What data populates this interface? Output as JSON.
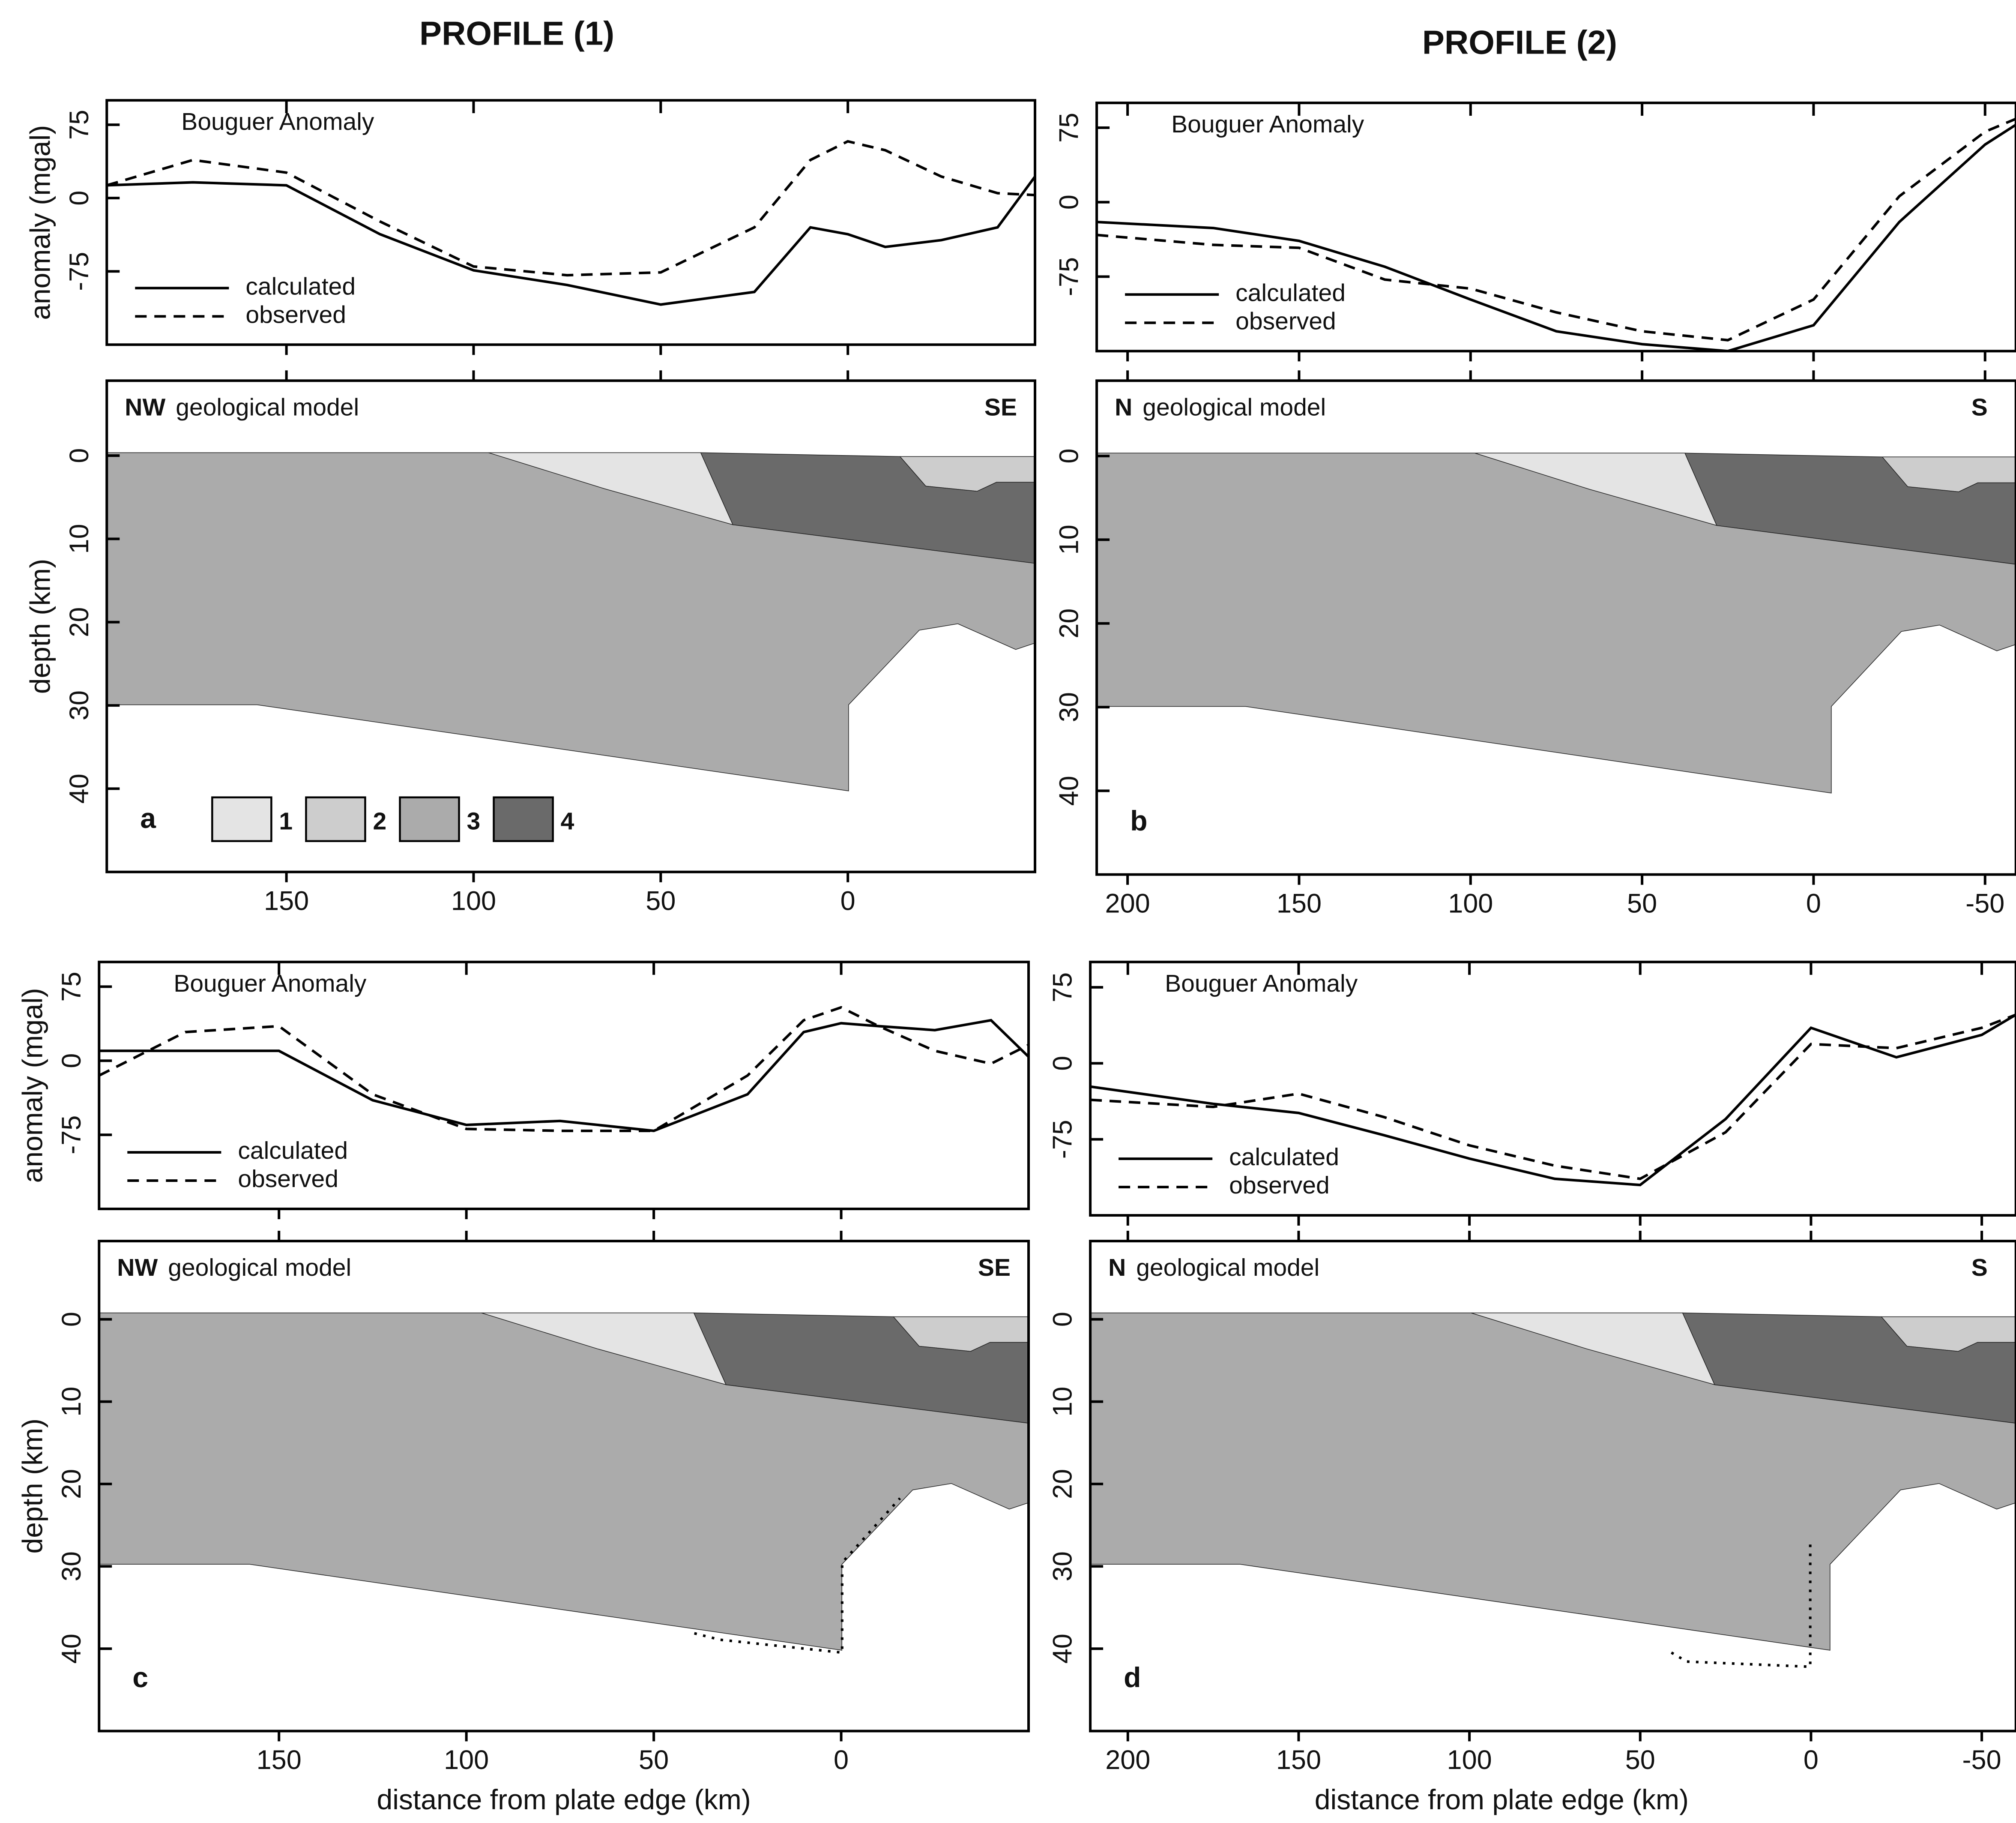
{
  "figure": {
    "titles": [
      "PROFILE (1)",
      "PROFILE (2)"
    ],
    "layers": [
      {
        "name": "1",
        "color": "#e4e4e4"
      },
      {
        "name": "2",
        "color": "#cdcdcd"
      },
      {
        "name": "3",
        "color": "#ababab"
      },
      {
        "name": "4",
        "color": "#6a6a6a"
      }
    ]
  },
  "chart_data": [
    {
      "type": "line",
      "title": "Bouguer Anomaly",
      "y_label": "anomaly (mgal)",
      "x": [
        198,
        175,
        150,
        125,
        100,
        75,
        50,
        25,
        10,
        0,
        -10,
        -25,
        -40,
        -50
      ],
      "series": [
        {
          "name": "calculated",
          "color": "#000000",
          "dash": "solid",
          "values": [
            13,
            16,
            13,
            -37,
            -74,
            -89,
            -109,
            -96,
            -30,
            -37,
            -50,
            -43,
            -30,
            22
          ]
        },
        {
          "name": "observed",
          "color": "#000000",
          "dash": "dashed",
          "values": [
            13,
            39,
            26,
            -24,
            -70,
            -79,
            -76,
            -30,
            39,
            58,
            49,
            22,
            5,
            3
          ]
        }
      ],
      "xlim": [
        198,
        -50
      ],
      "ylim": [
        -150,
        100
      ],
      "yticks": [
        75,
        0,
        -75
      ],
      "legend": "lower left"
    },
    {
      "type": "model",
      "title": "geological model",
      "left_label": "NW",
      "right_label": "SE",
      "panel": "a",
      "y_label": "depth (km)",
      "xlim": [
        198,
        -50
      ],
      "xticks": [
        150,
        100,
        50,
        0
      ],
      "ylim": [
        -9,
        50
      ],
      "yticks": [
        0,
        10,
        20,
        30,
        40
      ],
      "layer_legend": true
    },
    {
      "type": "line",
      "title": "Bouguer Anomaly",
      "x": [
        209,
        175,
        150,
        125,
        100,
        75,
        50,
        25,
        0,
        -25,
        -50,
        -59
      ],
      "series": [
        {
          "name": "calculated",
          "color": "#000000",
          "dash": "solid",
          "values": [
            -20,
            -26,
            -39,
            -65,
            -98,
            -130,
            -143,
            -150,
            -124,
            -20,
            58,
            78
          ]
        },
        {
          "name": "observed",
          "color": "#000000",
          "dash": "dashed",
          "values": [
            -33,
            -43,
            -46,
            -78,
            -87,
            -111,
            -130,
            -139,
            -98,
            6,
            71,
            84
          ]
        }
      ],
      "xlim": [
        209,
        -59
      ],
      "ylim": [
        -150,
        100
      ],
      "yticks": [
        75,
        0,
        -75
      ],
      "legend": "lower left"
    },
    {
      "type": "model",
      "title": "geological model",
      "left_label": "N",
      "right_label": "S",
      "panel": "b",
      "xlim": [
        209,
        -59
      ],
      "xticks": [
        200,
        150,
        100,
        50,
        0,
        -50
      ],
      "ylim": [
        -9,
        50
      ],
      "yticks": [
        0,
        10,
        20,
        30,
        40
      ]
    },
    {
      "type": "line",
      "title": "Bouguer Anomaly",
      "y_label": "anomaly (mgal)",
      "x": [
        198,
        175,
        150,
        125,
        100,
        75,
        50,
        25,
        10,
        0,
        -10,
        -25,
        -40,
        -50
      ],
      "series": [
        {
          "name": "calculated",
          "color": "#000000",
          "dash": "solid",
          "values": [
            10,
            10,
            10,
            -40,
            -65,
            -61,
            -71,
            -34,
            29,
            38,
            35,
            31,
            41,
            4
          ]
        },
        {
          "name": "observed",
          "color": "#000000",
          "dash": "dashed",
          "values": [
            -15,
            29,
            35,
            -34,
            -69,
            -71,
            -71,
            -15,
            41,
            54,
            35,
            10,
            -3,
            16
          ]
        }
      ],
      "xlim": [
        198,
        -50
      ],
      "ylim": [
        -150,
        100
      ],
      "yticks": [
        75,
        0,
        -75
      ],
      "legend": "lower left"
    },
    {
      "type": "model",
      "title": "geological model",
      "left_label": "NW",
      "right_label": "SE",
      "panel": "c",
      "y_label": "depth (km)",
      "x_label": "distance from plate edge (km)",
      "xlim": [
        198,
        -50
      ],
      "xticks": [
        150,
        100,
        50,
        0
      ],
      "ylim": [
        -9.5,
        50
      ],
      "yticks": [
        0,
        10,
        20,
        30,
        40
      ]
    },
    {
      "type": "line",
      "title": "Bouguer Anomaly",
      "x": [
        211,
        175,
        150,
        125,
        100,
        75,
        50,
        25,
        0,
        -25,
        -50,
        -60
      ],
      "series": [
        {
          "name": "calculated",
          "color": "#000000",
          "dash": "solid",
          "values": [
            -23,
            -40,
            -49,
            -71,
            -94,
            -114,
            -120,
            -55,
            35,
            6,
            28,
            48
          ]
        },
        {
          "name": "observed",
          "color": "#000000",
          "dash": "dashed",
          "values": [
            -36,
            -43,
            -30,
            -53,
            -81,
            -101,
            -114,
            -68,
            19,
            15,
            35,
            48
          ]
        }
      ],
      "xlim": [
        211,
        -60
      ],
      "ylim": [
        -150,
        100
      ],
      "yticks": [
        75,
        0,
        -75
      ],
      "legend": "lower left"
    },
    {
      "type": "model",
      "title": "geological model",
      "left_label": "N",
      "right_label": "S",
      "panel": "d",
      "x_label": "distance from plate edge (km)",
      "xlim": [
        211,
        -60
      ],
      "xticks": [
        200,
        150,
        100,
        50,
        0,
        -50
      ],
      "ylim": [
        -9.5,
        50
      ],
      "yticks": [
        0,
        10,
        20,
        30,
        40
      ]
    }
  ]
}
